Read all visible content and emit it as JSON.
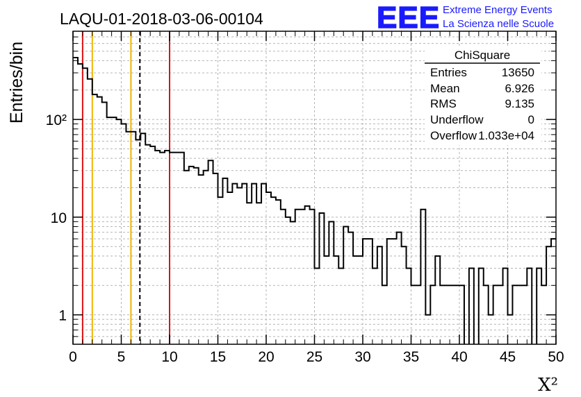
{
  "header": {
    "title": "LAQU-01-2018-03-06-00104",
    "logo_text": "EEE",
    "logo_line1": "Extreme Energy Events",
    "logo_line2": "La Scienza nelle Scuole"
  },
  "stats_box": {
    "title": "ChiSquare",
    "rows": [
      {
        "label": "Entries",
        "value": "13650"
      },
      {
        "label": "Mean",
        "value": "6.926"
      },
      {
        "label": "RMS",
        "value": "9.135"
      },
      {
        "label": "Underflow",
        "value": "0"
      },
      {
        "label": "Overflow",
        "value": "1.033e+04"
      }
    ]
  },
  "colors": {
    "histogram": "#000000",
    "red_lines": "#dd1111",
    "yellow_lines": "#f0b400",
    "mean_line": "#000000",
    "grid": "#b4b4b4",
    "logo": "#1a1aff"
  },
  "chart_data": {
    "type": "histogram",
    "title": "LAQU-01-2018-03-06-00104",
    "xlabel": "X²",
    "ylabel": "Entries/bin",
    "xlim": [
      0,
      50
    ],
    "ylim": [
      0.5,
      800
    ],
    "y_scale": "log",
    "grid": true,
    "x_ticks": [
      "0",
      "5",
      "10",
      "15",
      "20",
      "25",
      "30",
      "35",
      "40",
      "45",
      "50"
    ],
    "y_ticks": [
      {
        "value": 1,
        "label": "1"
      },
      {
        "value": 10,
        "label": "10"
      },
      {
        "value": 100,
        "label": "10²"
      }
    ],
    "bin_width": 0.5,
    "values": [
      430,
      370,
      335,
      260,
      180,
      170,
      150,
      105,
      105,
      100,
      90,
      75,
      75,
      62,
      72,
      55,
      53,
      48,
      46,
      48,
      46,
      46,
      46,
      30,
      33,
      32,
      27,
      30,
      38,
      28,
      16,
      25,
      18,
      22,
      20,
      22,
      14,
      22,
      14,
      22,
      18,
      16,
      15,
      12,
      10,
      9,
      12,
      12,
      13,
      12,
      3,
      11,
      4,
      9,
      4,
      3,
      8,
      7,
      4,
      4,
      6,
      6,
      3,
      5,
      2,
      6,
      6,
      7,
      5,
      3,
      2,
      2,
      12,
      1,
      2,
      4,
      2,
      2,
      2,
      2,
      2,
      0.4,
      3,
      0.4,
      3,
      2,
      1,
      2,
      2,
      3,
      1,
      2,
      2,
      2,
      3,
      0.4,
      3,
      2,
      5,
      6
    ],
    "vertical_lines": [
      {
        "x": 1,
        "color": "#dd1111",
        "style": "solid"
      },
      {
        "x": 10,
        "color": "#dd1111",
        "style": "solid"
      },
      {
        "x": 2,
        "color": "#f0b400",
        "style": "solid"
      },
      {
        "x": 6,
        "color": "#f0b400",
        "style": "solid"
      },
      {
        "x": 6.926,
        "color": "#000000",
        "style": "dashed"
      }
    ]
  }
}
